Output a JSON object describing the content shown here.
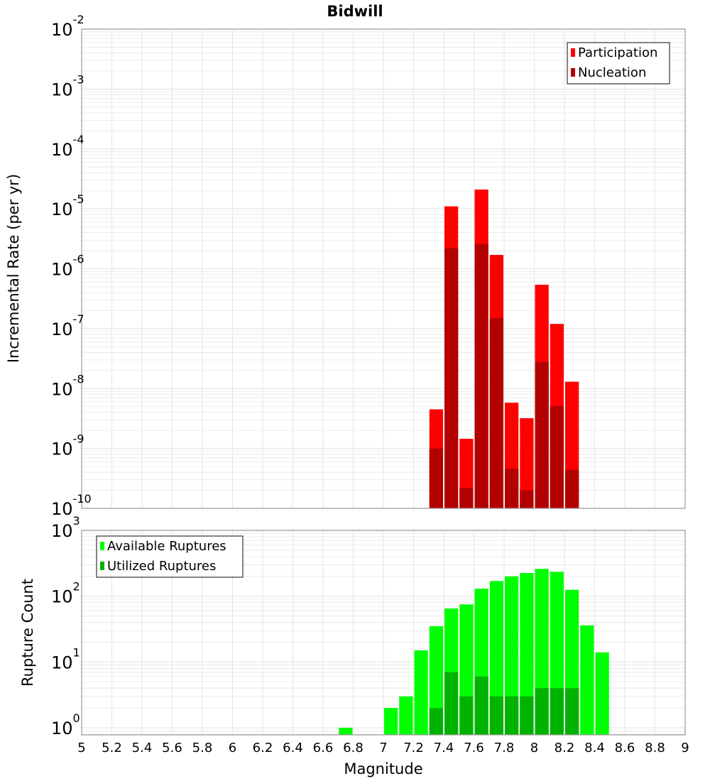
{
  "title": "Bidwill",
  "colors": {
    "participation": "#ff0000",
    "nucleation": "#b30000",
    "available": "#00ff00",
    "utilized": "#00b300",
    "grid": "#e6e6e6",
    "frame": "#999999"
  },
  "chart_data": [
    {
      "type": "bar",
      "title": "Bidwill",
      "xlabel": "Magnitude",
      "ylabel": "Incremental Rate (per yr)",
      "yscale": "log",
      "ylim": [
        1e-10,
        0.01
      ],
      "xlim": [
        5,
        9
      ],
      "grid": true,
      "legend_position": "top-right",
      "bin_width": 0.1,
      "x": [
        7.35,
        7.45,
        7.55,
        7.65,
        7.75,
        7.85,
        7.95,
        8.05,
        8.15,
        8.25
      ],
      "series": [
        {
          "name": "Participation",
          "values": [
            4.5e-09,
            1.1e-05,
            1.45e-09,
            2.1e-05,
            1.7e-06,
            5.8e-09,
            3.2e-09,
            5.4e-07,
            1.2e-07,
            1.3e-08
          ]
        },
        {
          "name": "Nucleation",
          "values": [
            1e-09,
            2.2e-06,
            2.2e-10,
            2.6e-06,
            1.5e-07,
            4.6e-10,
            2e-10,
            2.8e-08,
            5.1e-09,
            4.4e-10
          ]
        }
      ],
      "ytick_exponents": [
        "-10",
        "-9",
        "-8",
        "-7",
        "-6",
        "-5",
        "-4",
        "-3",
        "-2"
      ]
    },
    {
      "type": "bar",
      "xlabel": "Magnitude",
      "ylabel": "Rupture Count",
      "yscale": "log",
      "ylim": [
        0.78,
        1000
      ],
      "xlim": [
        5,
        9
      ],
      "grid": true,
      "legend_position": "top-left",
      "bin_width": 0.1,
      "x": [
        6.75,
        7.05,
        7.15,
        7.25,
        7.35,
        7.45,
        7.55,
        7.65,
        7.75,
        7.85,
        7.95,
        8.05,
        8.15,
        8.25,
        8.35,
        8.45
      ],
      "series": [
        {
          "name": "Available Ruptures",
          "values": [
            1,
            2,
            3,
            15,
            35,
            65,
            75,
            130,
            170,
            200,
            225,
            260,
            235,
            125,
            36,
            14
          ]
        },
        {
          "name": "Utilized Ruptures",
          "values": [
            0,
            0,
            0,
            0,
            2,
            7,
            3,
            6,
            3,
            3,
            3,
            4,
            4,
            4,
            0,
            0
          ]
        }
      ],
      "ytick_exponents": [
        "0",
        "1",
        "2",
        "3"
      ],
      "xticks": [
        "5",
        "5.2",
        "5.4",
        "5.6",
        "5.8",
        "6",
        "6.2",
        "6.4",
        "6.6",
        "6.8",
        "7",
        "7.2",
        "7.4",
        "7.6",
        "7.8",
        "8",
        "8.2",
        "8.4",
        "8.6",
        "8.8",
        "9"
      ]
    }
  ]
}
